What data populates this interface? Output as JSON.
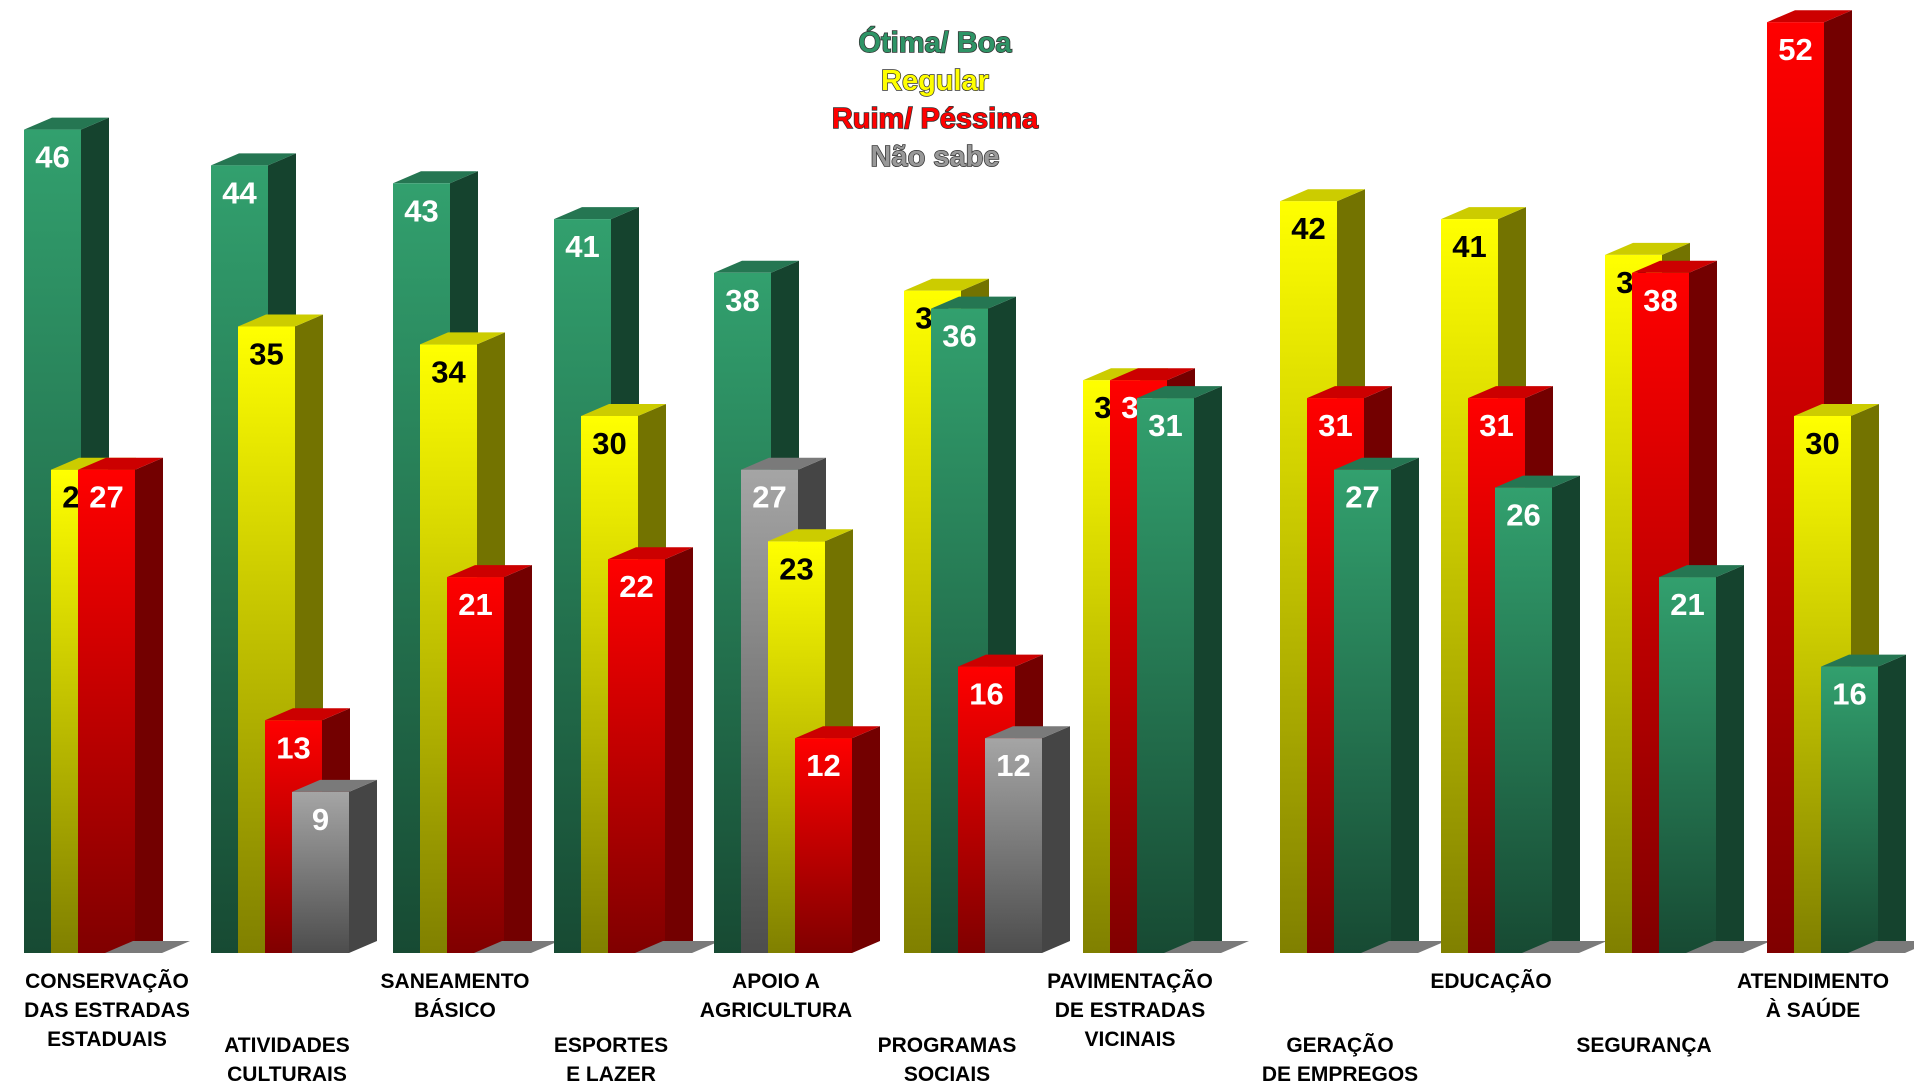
{
  "chart_data": {
    "type": "bar3d",
    "categories": [
      "CONSERVAÇÃO\nDAS ESTRADAS\nESTADUAIS",
      "ATIVIDADES\nCULTURAIS",
      "SANEAMENTO\nBÁSICO",
      "ESPORTES\nE LAZER",
      "APOIO A\nAGRICULTURA",
      "PROGRAMAS\nSOCIAIS",
      "PAVIMENTAÇÃO\nDE ESTRADAS\nVICINAIS",
      "GERAÇÃO\nDE EMPREGOS",
      "EDUCAÇÃO",
      "SEGURANÇA",
      "ATENDIMENTO\nÀ SAÚDE"
    ],
    "series": [
      {
        "name": "Ótima/ Boa",
        "color": "#2e9466",
        "values": [
          46,
          44,
          43,
          41,
          38,
          36,
          31,
          27,
          26,
          21,
          16
        ]
      },
      {
        "name": "Regular",
        "color": "#ffff00",
        "values": [
          27,
          35,
          34,
          30,
          23,
          37,
          32,
          42,
          41,
          39,
          30
        ]
      },
      {
        "name": "Ruim/ Péssima",
        "color": "#ff0000",
        "values": [
          27,
          13,
          21,
          22,
          12,
          16,
          32,
          31,
          31,
          38,
          52
        ]
      },
      {
        "name": "Não sabe",
        "color": "#999999",
        "values": [
          null,
          9,
          null,
          null,
          27,
          12,
          null,
          null,
          null,
          null,
          null
        ]
      }
    ]
  }
}
